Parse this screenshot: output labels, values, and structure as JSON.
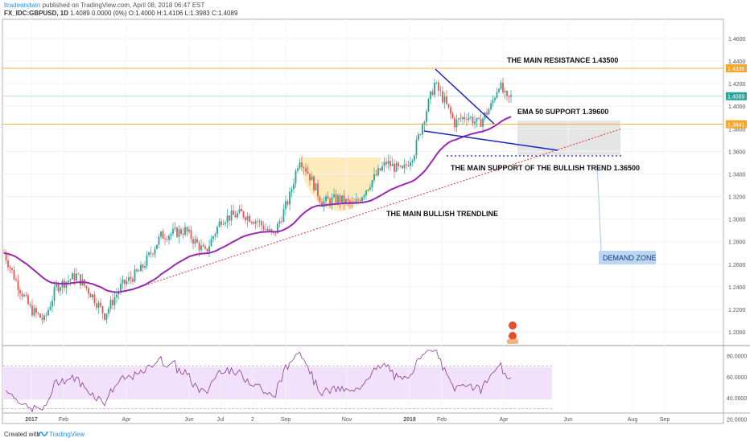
{
  "header": {
    "author": "ltradeandwin",
    "published": "published on TradingView.com, April 08, 2018 06:47 EST",
    "symbol": "FX_IDC:GBPUSD, 1D",
    "ohlc": "1.4089 0.0000 (0%) O:1.4000 H:1.4106 L:1.3983 C:1.4089"
  },
  "footer": {
    "created_with": "Created with",
    "brand": "TradingView"
  },
  "colors": {
    "bull_candle": "#26a69a",
    "bear_candle": "#ef5350",
    "ema": "#9c27b0",
    "resistance_line": "#f5b041",
    "trend_line": "#e53935",
    "triangle": "#1a23c8",
    "rsi_line": "#8e3a9d",
    "rsi_band": "#f1e1fb",
    "cup_fill": "#fde7b2",
    "demand_zone": "#e0e0e0",
    "label_blue": "#bcd6f5"
  },
  "chart_data": {
    "type": "candlestick",
    "price_axis": {
      "ticks": [
        "1.4600",
        "1.4400",
        "1.4200",
        "1.4000",
        "1.3800",
        "1.3600",
        "1.3400",
        "1.3200",
        "1.3000",
        "1.2800",
        "1.2600",
        "1.2400",
        "1.2200",
        "1.2000"
      ],
      "ylim": [
        1.195,
        1.48
      ],
      "price_tags": [
        {
          "value": "1.4336",
          "price": 1.4336,
          "color": "#f5a623"
        },
        {
          "value": "1.4089",
          "price": 1.4089,
          "color": "#26a69a"
        },
        {
          "value": "1.3841",
          "price": 1.3841,
          "color": "#f5a623"
        }
      ]
    },
    "time_axis": {
      "labels": [
        "2017",
        "Feb",
        "Apr",
        "Jun",
        "Jul",
        "2",
        "Sep",
        "Nov",
        "2018",
        "Feb",
        "Apr",
        "Jun",
        "Aug",
        "Sep"
      ]
    },
    "annotations": [
      {
        "text": "THE MAIN RESISTANCE 1.43500",
        "price": 1.435
      },
      {
        "text": "EMA 50 SUPPORT 1.39600",
        "price": 1.396
      },
      {
        "text": "THE MAIN SUPPORT OF THE BULLISH TREND 1.36500",
        "price": 1.365
      },
      {
        "text": "THE MAIN BULLISH TRENDLINE"
      },
      {
        "text": "DEMAND ZONE"
      }
    ],
    "levels": [
      {
        "price": 1.4336,
        "style": "solid"
      },
      {
        "price": 1.3841,
        "style": "solid"
      },
      {
        "price": 1.356,
        "style": "dotted"
      }
    ],
    "close_start": 1.27,
    "close_end": 1.4089,
    "rsi": {
      "ticks": [
        "80.0000",
        "60.0000",
        "40.0000",
        "20.0000"
      ],
      "ylim": [
        15,
        88
      ],
      "band": [
        30,
        70
      ]
    }
  }
}
